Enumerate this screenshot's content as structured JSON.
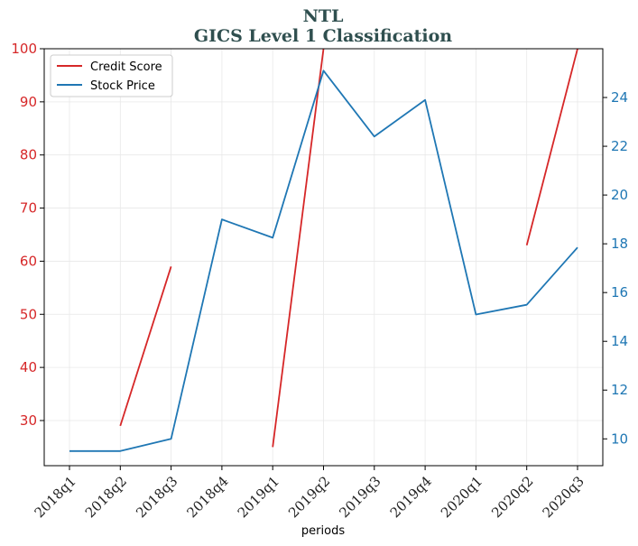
{
  "chart_data": {
    "type": "line",
    "title_line1": "NTL",
    "title_line2": "GICS Level 1 Classification",
    "xlabel": "periods",
    "categories": [
      "2018q1",
      "2018q2",
      "2018q3",
      "2018q4",
      "2019q1",
      "2019q2",
      "2019q3",
      "2019q4",
      "2020q1",
      "2020q2",
      "2020q3"
    ],
    "y_left": {
      "lim": [
        21.5,
        100
      ],
      "ticks": [
        30,
        40,
        50,
        60,
        70,
        80,
        90,
        100
      ],
      "color": "#d62728"
    },
    "y_right": {
      "lim": [
        8.9,
        26.0
      ],
      "ticks": [
        10,
        12,
        14,
        16,
        18,
        20,
        22,
        24
      ],
      "color": "#1f77b4"
    },
    "grid": true,
    "legend_position": "upper-left",
    "series": [
      {
        "name": "Credit Score",
        "axis": "left",
        "color": "#d62728",
        "values": [
          null,
          29,
          59,
          null,
          25,
          100,
          null,
          null,
          null,
          63,
          100
        ]
      },
      {
        "name": "Stock Price",
        "axis": "right",
        "color": "#1f77b4",
        "values": [
          9.5,
          9.5,
          10.0,
          19.0,
          18.25,
          25.1,
          22.4,
          23.9,
          15.1,
          15.5,
          17.85
        ]
      }
    ]
  }
}
